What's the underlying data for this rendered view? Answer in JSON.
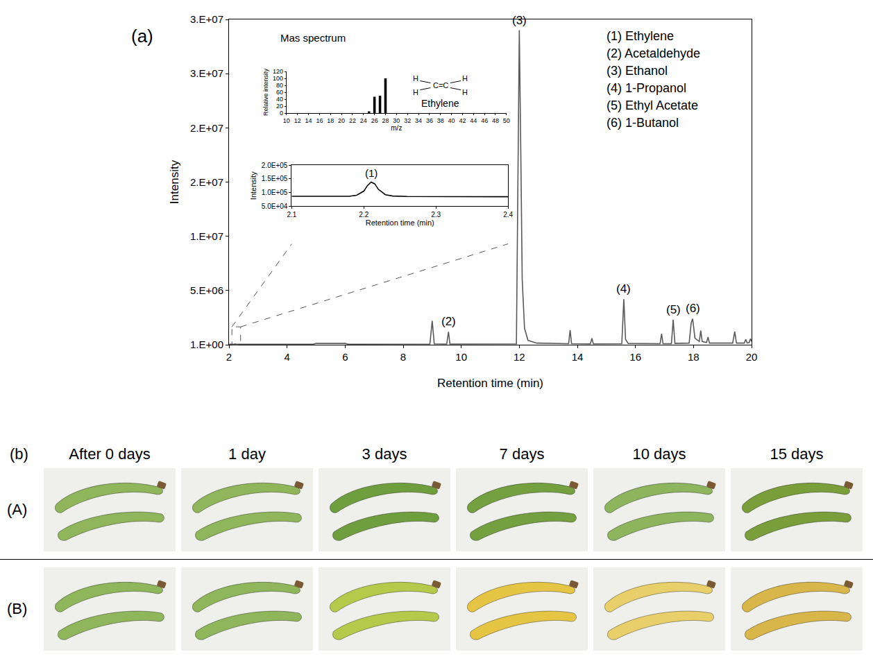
{
  "chart_data": [
    {
      "type": "line",
      "panel_label": "(a)",
      "xlabel": "Retention time (min)",
      "ylabel": "Intensity",
      "color": "#595959",
      "grid": false,
      "x": [
        2.0,
        2.2,
        2.21,
        2.22,
        4.9,
        5.0,
        6.0,
        6.1,
        8.92,
        9.0,
        9.07,
        9.5,
        9.56,
        9.61,
        11.9,
        11.96,
        12.0,
        12.05,
        12.1,
        12.18,
        12.3,
        12.6,
        13.7,
        13.75,
        13.8,
        14.45,
        14.5,
        14.55,
        15.53,
        15.6,
        15.66,
        15.75,
        16.85,
        16.9,
        16.95,
        17.24,
        17.3,
        17.36,
        17.85,
        17.92,
        17.97,
        18.05,
        18.2,
        18.25,
        18.3,
        18.45,
        18.5,
        18.55,
        19.35,
        19.42,
        19.48,
        19.75,
        19.8,
        19.85,
        19.92,
        19.96,
        20.0
      ],
      "values": [
        50000,
        50000,
        100000,
        50000,
        50000,
        120000,
        120000,
        50000,
        60000,
        2200000,
        80000,
        60000,
        1200000,
        60000,
        80000,
        15000000,
        29000000,
        18000000,
        6000000,
        1500000,
        400000,
        150000,
        100000,
        1350000,
        100000,
        80000,
        600000,
        80000,
        100000,
        4200000,
        500000,
        120000,
        100000,
        1000000,
        100000,
        100000,
        2300000,
        120000,
        150000,
        2000000,
        2400000,
        600000,
        300000,
        1300000,
        300000,
        200000,
        700000,
        150000,
        150000,
        1200000,
        150000,
        150000,
        500000,
        150000,
        200000,
        550000,
        300000
      ],
      "xlim": [
        2,
        20
      ],
      "xticks": [
        2,
        4,
        6,
        8,
        10,
        12,
        14,
        16,
        18,
        20
      ],
      "ylim": [
        1,
        30000000
      ],
      "yticks": [
        {
          "value": 1,
          "label": "1.E+00"
        },
        {
          "value": 5000000,
          "label": "5.E+06"
        },
        {
          "value": 10000000,
          "label": "1.E+07"
        },
        {
          "value": 15000000,
          "label": "2.E+07"
        },
        {
          "value": 20000000,
          "label": "2.E+07"
        },
        {
          "value": 25000000,
          "label": "3.E+07"
        },
        {
          "value": 30000000,
          "label": "3.E+07"
        }
      ],
      "annotations": [
        {
          "text": "(2)",
          "x": 9.56,
          "y": 1200000
        },
        {
          "text": "(3)",
          "x": 12.0,
          "y": 29000000
        },
        {
          "text": "(4)",
          "x": 15.6,
          "y": 4200000
        },
        {
          "text": "(5)",
          "x": 17.3,
          "y": 2300000
        },
        {
          "text": "(6)",
          "x": 17.97,
          "y": 2400000
        }
      ],
      "compound_list": [
        "(1) Ethylene",
        "(2) Acetaldehyde",
        "(3) Ethanol",
        "(4) 1-Propanol",
        "(5) Ethyl Acetate",
        "(6) 1-Butanol"
      ]
    },
    {
      "type": "bar",
      "title": "Mas spectrum",
      "xlabel": "m/z",
      "ylabel": "Relative intensity",
      "color": "#000000",
      "x": [
        25,
        26,
        27,
        28
      ],
      "values": [
        5,
        47,
        50,
        100
      ],
      "xlim": [
        10,
        50
      ],
      "xticks": [
        10,
        12,
        14,
        16,
        18,
        20,
        22,
        24,
        26,
        28,
        30,
        32,
        34,
        36,
        38,
        40,
        42,
        44,
        46,
        48,
        50
      ],
      "ylim": [
        0,
        120
      ],
      "yticks": [
        0,
        20,
        40,
        60,
        80,
        100,
        120
      ],
      "structure": {
        "name": "Ethylene",
        "core": "C=C",
        "substituents": [
          "H",
          "H",
          "H",
          "H"
        ]
      }
    },
    {
      "type": "line",
      "xlabel": "Retention time (min)",
      "ylabel": "Intensity",
      "color": "#000000",
      "x": [
        2.1,
        2.13,
        2.16,
        2.18,
        2.19,
        2.2,
        2.205,
        2.21,
        2.215,
        2.22,
        2.23,
        2.24,
        2.26,
        2.3,
        2.35,
        2.4
      ],
      "values": [
        86000,
        85500,
        85000,
        86000,
        90000,
        105000,
        125000,
        138000,
        132000,
        112000,
        92000,
        87000,
        85500,
        85000,
        85500,
        84500
      ],
      "xlim": [
        2.1,
        2.4
      ],
      "xticks": [
        2.1,
        2.2,
        2.3,
        2.4
      ],
      "ylim": [
        50000,
        200000
      ],
      "yticks": [
        {
          "value": 50000,
          "label": "5.0E+04"
        },
        {
          "value": 100000,
          "label": "1.0E+05"
        },
        {
          "value": 150000,
          "label": "1.5E+05"
        },
        {
          "value": 200000,
          "label": "2.0E+05"
        }
      ],
      "annotations": [
        {
          "text": "(1)",
          "x": 2.21,
          "y": 138000
        }
      ]
    }
  ],
  "photo_panel": {
    "label": "(b)",
    "columns": [
      "After 0 days",
      "1 day",
      "3 days",
      "7 days",
      "10 days",
      "15 days"
    ],
    "rows": [
      {
        "label": "(A)",
        "colors": [
          "#8fb65a",
          "#8fb65a",
          "#6f9e3e",
          "#74a040",
          "#8db55e",
          "#7a9e3a"
        ]
      },
      {
        "label": "(B)",
        "colors": [
          "#8fb65a",
          "#8fb65a",
          "#b5c94a",
          "#e6c544",
          "#e8cf6a",
          "#d9b64a"
        ]
      }
    ]
  }
}
